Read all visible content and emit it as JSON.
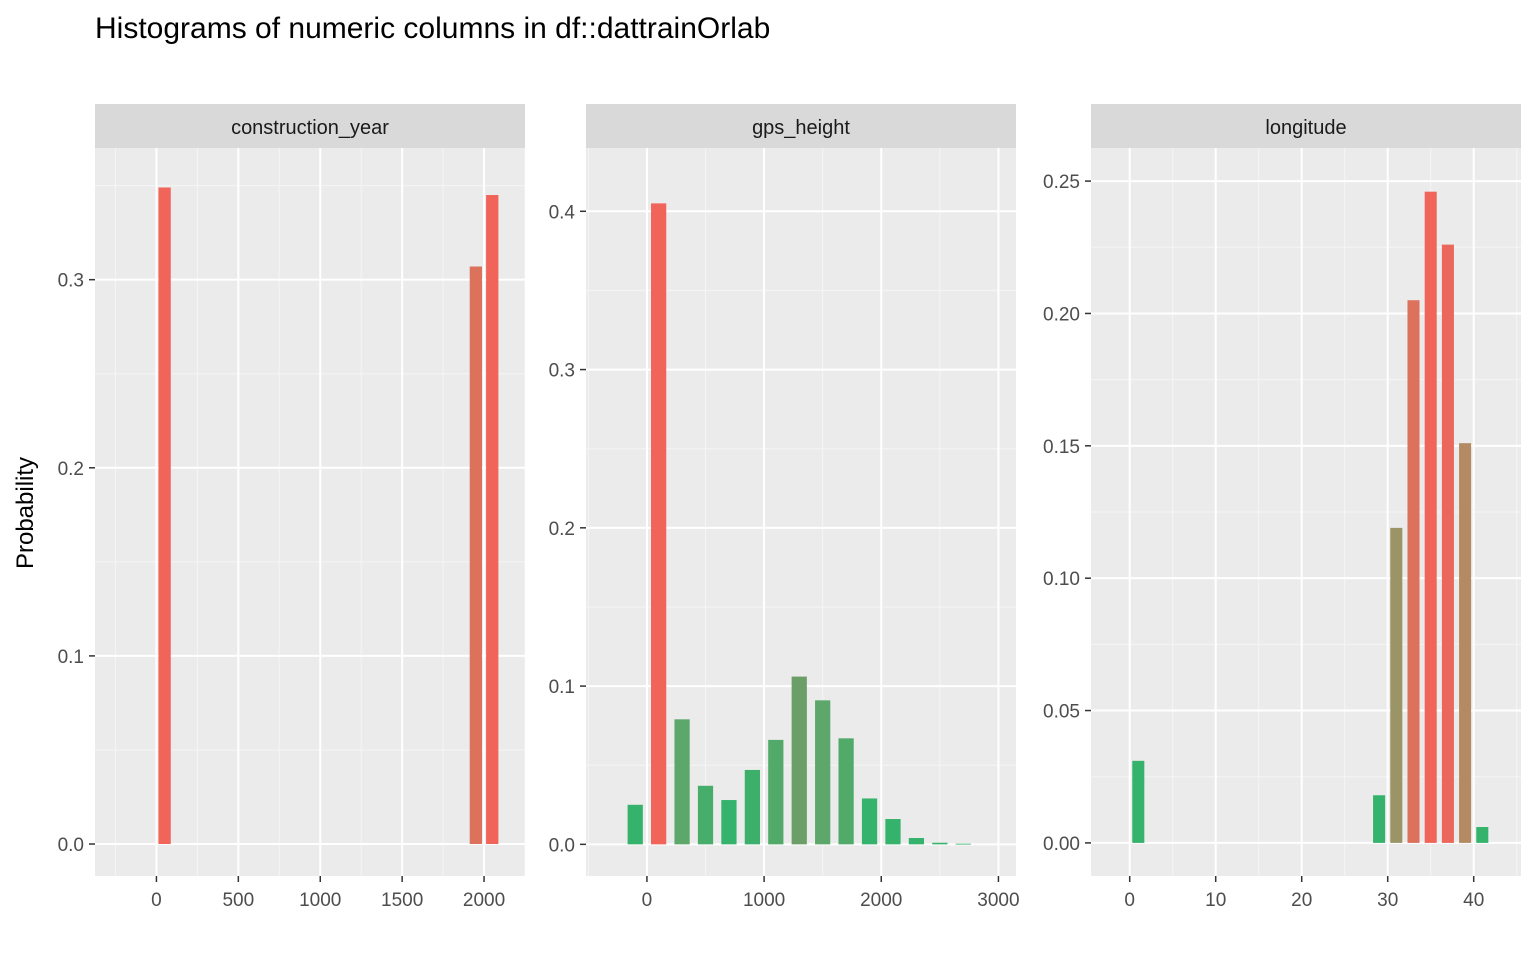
{
  "title": "Histograms of numeric columns in df::dattrainOrlab",
  "ylabel": "Probability",
  "chart_data": [
    {
      "type": "bar",
      "panel": "construction_year",
      "xlim": [
        -375,
        2250
      ],
      "ylim": [
        -0.017,
        0.37
      ],
      "xticks": [
        0,
        500,
        1000,
        1500,
        2000
      ],
      "yticks": [
        0.0,
        0.1,
        0.2,
        0.3
      ],
      "ytick_labels": [
        "0.0",
        "0.1",
        "0.2",
        "0.3"
      ],
      "bin_width": 75,
      "x": [
        50,
        1950,
        2050
      ],
      "values": [
        0.349,
        0.307,
        0.345
      ],
      "colors": [
        "#f0645a",
        "#dd725c",
        "#f0645a"
      ]
    },
    {
      "type": "bar",
      "panel": "gps_height",
      "xlim": [
        -520,
        3150
      ],
      "ylim": [
        -0.02,
        0.44
      ],
      "xticks": [
        0,
        1000,
        2000,
        3000
      ],
      "yticks": [
        0.0,
        0.1,
        0.2,
        0.3,
        0.4
      ],
      "ytick_labels": [
        "0.0",
        "0.1",
        "0.2",
        "0.3",
        "0.4"
      ],
      "bin_width": 130,
      "x": [
        -100,
        100,
        300,
        500,
        700,
        900,
        1100,
        1300,
        1500,
        1700,
        1900,
        2100,
        2300,
        2500,
        2700
      ],
      "values": [
        0.025,
        0.405,
        0.079,
        0.037,
        0.028,
        0.047,
        0.066,
        0.106,
        0.091,
        0.067,
        0.029,
        0.016,
        0.004,
        0.001,
        0.0004
      ],
      "colors": [
        "#35b26b",
        "#f0645a",
        "#5ba86a",
        "#46ae6a",
        "#35b26b",
        "#3cb06b",
        "#52aa6a",
        "#6c9e67",
        "#5ca769",
        "#52aa6a",
        "#35b26b",
        "#35b26b",
        "#35b26b",
        "#35b26b",
        "#35b26b"
      ]
    },
    {
      "type": "bar",
      "panel": "longitude",
      "xlim": [
        -4.5,
        45.5
      ],
      "ylim": [
        -0.0125,
        0.2625
      ],
      "xticks": [
        0,
        10,
        20,
        30,
        40
      ],
      "yticks": [
        0.0,
        0.05,
        0.1,
        0.15,
        0.2,
        0.25
      ],
      "ytick_labels": [
        "0.00",
        "0.05",
        "0.10",
        "0.15",
        "0.20",
        "0.25"
      ],
      "bin_width": 1.4,
      "x": [
        1,
        29,
        31,
        33,
        35,
        37,
        39,
        41
      ],
      "values": [
        0.031,
        0.018,
        0.119,
        0.205,
        0.246,
        0.226,
        0.151,
        0.006
      ],
      "colors": [
        "#35b26b",
        "#35b26b",
        "#9b9466",
        "#dc725c",
        "#f0645a",
        "#eb675b",
        "#b48a62",
        "#35b26b"
      ]
    }
  ]
}
